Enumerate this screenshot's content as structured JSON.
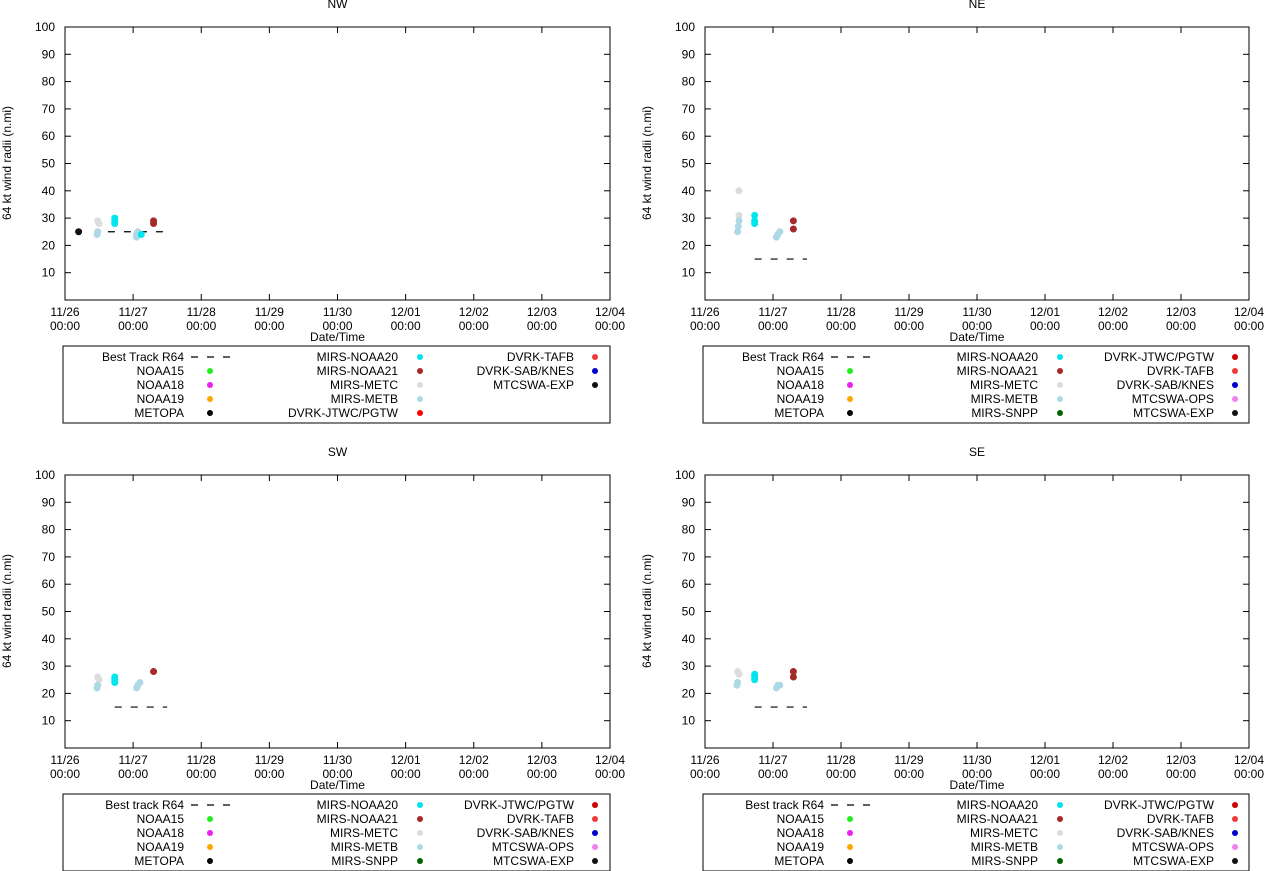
{
  "chart_data": [
    {
      "type": "scatter",
      "title": "NW",
      "xlabel": "Date/Time",
      "ylabel": "64 kt wind radii (n.mi)",
      "ylim": [
        0,
        100
      ],
      "yticks": [
        "10",
        "20",
        "30",
        "40",
        "50",
        "60",
        "70",
        "80",
        "90",
        "100"
      ],
      "xlim_days": [
        0,
        8
      ],
      "xticks": [
        [
          "11/26",
          "00:00"
        ],
        [
          "11/27",
          "00:00"
        ],
        [
          "11/28",
          "00:00"
        ],
        [
          "11/29",
          "00:00"
        ],
        [
          "11/30",
          "00:00"
        ],
        [
          "12/01",
          "00:00"
        ],
        [
          "12/02",
          "00:00"
        ],
        [
          "12/03",
          "00:00"
        ],
        [
          "12/04",
          "00:00"
        ]
      ],
      "legend": [
        {
          "label": "Best Track R64",
          "kind": "dash",
          "color": "#000000"
        },
        {
          "label": "NOAA15",
          "kind": "dot",
          "color": "#22ee22"
        },
        {
          "label": "NOAA18",
          "kind": "dot",
          "color": "#ee22ee"
        },
        {
          "label": "NOAA19",
          "kind": "dot",
          "color": "#ffa500"
        },
        {
          "label": "METOPA",
          "kind": "dot",
          "color": "#000000"
        },
        {
          "label": "MIRS-NOAA20",
          "kind": "dot",
          "color": "#00e5ee"
        },
        {
          "label": "MIRS-NOAA21",
          "kind": "dot",
          "color": "#a52a2a"
        },
        {
          "label": "MIRS-METC",
          "kind": "dot",
          "color": "#dcdcdc"
        },
        {
          "label": "MIRS-METB",
          "kind": "dot",
          "color": "#add8e6"
        },
        {
          "label": "DVRK-JTWC/PGTW",
          "kind": "dot",
          "color": "#ff0000"
        },
        {
          "label": "DVRK-TAFB",
          "kind": "dot",
          "color": "#ee3b3b"
        },
        {
          "label": "DVRK-SAB/KNES",
          "kind": "dot",
          "color": "#0000cd"
        },
        {
          "label": "MTCSWA-EXP",
          "kind": "dot",
          "color": "#111111"
        }
      ],
      "legend_columns": 3,
      "best_track": {
        "x": [
          0.63,
          1.5
        ],
        "y": 25
      },
      "series": [
        {
          "name": "METOPA",
          "color": "#111111",
          "points": [
            [
              0.2,
              25
            ]
          ]
        },
        {
          "name": "MIRS-METC",
          "color": "#dcdcdc",
          "points": [
            [
              0.48,
              29
            ],
            [
              0.5,
              28
            ]
          ]
        },
        {
          "name": "MIRS-METB",
          "color": "#add8e6",
          "points": [
            [
              0.47,
              24
            ],
            [
              0.48,
              25
            ],
            [
              1.05,
              23
            ],
            [
              1.05,
              24
            ],
            [
              1.07,
              25
            ],
            [
              1.1,
              24
            ]
          ]
        },
        {
          "name": "MIRS-NOAA20",
          "color": "#00e5ee",
          "points": [
            [
              0.73,
              28
            ],
            [
              0.73,
              29
            ],
            [
              0.73,
              30
            ],
            [
              1.12,
              24
            ]
          ]
        },
        {
          "name": "MIRS-NOAA21",
          "color": "#a52a2a",
          "points": [
            [
              1.3,
              28
            ],
            [
              1.3,
              29
            ]
          ]
        }
      ]
    },
    {
      "type": "scatter",
      "title": "NE",
      "xlabel": "Date/Time",
      "ylabel": "64 kt wind radii (n.mi)",
      "ylim": [
        0,
        100
      ],
      "yticks": [
        "10",
        "20",
        "30",
        "40",
        "50",
        "60",
        "70",
        "80",
        "90",
        "100"
      ],
      "xlim_days": [
        0,
        8
      ],
      "xticks": [
        [
          "11/26",
          "00:00"
        ],
        [
          "11/27",
          "00:00"
        ],
        [
          "11/28",
          "00:00"
        ],
        [
          "11/29",
          "00:00"
        ],
        [
          "11/30",
          "00:00"
        ],
        [
          "12/01",
          "00:00"
        ],
        [
          "12/02",
          "00:00"
        ],
        [
          "12/03",
          "00:00"
        ],
        [
          "12/04",
          "00:00"
        ]
      ],
      "legend": [
        {
          "label": "Best Track R64",
          "kind": "dash",
          "color": "#000000"
        },
        {
          "label": "NOAA15",
          "kind": "dot",
          "color": "#22ee22"
        },
        {
          "label": "NOAA18",
          "kind": "dot",
          "color": "#ee22ee"
        },
        {
          "label": "NOAA19",
          "kind": "dot",
          "color": "#ffa500"
        },
        {
          "label": "METOPA",
          "kind": "dot",
          "color": "#000000"
        },
        {
          "label": "MIRS-NOAA20",
          "kind": "dot",
          "color": "#00e5ee"
        },
        {
          "label": "MIRS-NOAA21",
          "kind": "dot",
          "color": "#a52a2a"
        },
        {
          "label": "MIRS-METC",
          "kind": "dot",
          "color": "#dcdcdc"
        },
        {
          "label": "MIRS-METB",
          "kind": "dot",
          "color": "#add8e6"
        },
        {
          "label": "MIRS-SNPP",
          "kind": "dot",
          "color": "#006400"
        },
        {
          "label": "DVRK-JTWC/PGTW",
          "kind": "dot",
          "color": "#cd0000"
        },
        {
          "label": "DVRK-TAFB",
          "kind": "dot",
          "color": "#ee3b3b"
        },
        {
          "label": "DVRK-SAB/KNES",
          "kind": "dot",
          "color": "#0000cd"
        },
        {
          "label": "MTCSWA-OPS",
          "kind": "dot",
          "color": "#ee82ee"
        },
        {
          "label": "MTCSWA-EXP",
          "kind": "dot",
          "color": "#111111"
        }
      ],
      "legend_columns": 3,
      "best_track": {
        "x": [
          0.73,
          1.5
        ],
        "y": 15
      },
      "series": [
        {
          "name": "MIRS-METC",
          "color": "#dcdcdc",
          "points": [
            [
              0.5,
              40
            ],
            [
              0.5,
              31
            ]
          ]
        },
        {
          "name": "MIRS-METB",
          "color": "#add8e6",
          "points": [
            [
              0.48,
              25
            ],
            [
              0.49,
              27
            ],
            [
              0.5,
              29
            ],
            [
              1.05,
              23
            ],
            [
              1.07,
              24
            ],
            [
              1.1,
              25
            ]
          ]
        },
        {
          "name": "MIRS-NOAA20",
          "color": "#00e5ee",
          "points": [
            [
              0.73,
              28
            ],
            [
              0.73,
              29
            ],
            [
              0.73,
              31
            ]
          ]
        },
        {
          "name": "MIRS-NOAA21",
          "color": "#a52a2a",
          "points": [
            [
              1.3,
              26
            ],
            [
              1.3,
              29
            ]
          ]
        }
      ]
    },
    {
      "type": "scatter",
      "title": "SW",
      "xlabel": "Date/Time",
      "ylabel": "64 kt wind radii (n.mi)",
      "ylim": [
        0,
        100
      ],
      "yticks": [
        "10",
        "20",
        "30",
        "40",
        "50",
        "60",
        "70",
        "80",
        "90",
        "100"
      ],
      "xlim_days": [
        0,
        8
      ],
      "xticks": [
        [
          "11/26",
          "00:00"
        ],
        [
          "11/27",
          "00:00"
        ],
        [
          "11/28",
          "00:00"
        ],
        [
          "11/29",
          "00:00"
        ],
        [
          "11/30",
          "00:00"
        ],
        [
          "12/01",
          "00:00"
        ],
        [
          "12/02",
          "00:00"
        ],
        [
          "12/03",
          "00:00"
        ],
        [
          "12/04",
          "00:00"
        ]
      ],
      "legend": [
        {
          "label": "Best track R64",
          "kind": "dash",
          "color": "#000000"
        },
        {
          "label": "NOAA15",
          "kind": "dot",
          "color": "#22ee22"
        },
        {
          "label": "NOAA18",
          "kind": "dot",
          "color": "#ee22ee"
        },
        {
          "label": "NOAA19",
          "kind": "dot",
          "color": "#ffa500"
        },
        {
          "label": "METOPA",
          "kind": "dot",
          "color": "#000000"
        },
        {
          "label": "MIRS-NOAA20",
          "kind": "dot",
          "color": "#00e5ee"
        },
        {
          "label": "MIRS-NOAA21",
          "kind": "dot",
          "color": "#a52a2a"
        },
        {
          "label": "MIRS-METC",
          "kind": "dot",
          "color": "#dcdcdc"
        },
        {
          "label": "MIRS-METB",
          "kind": "dot",
          "color": "#add8e6"
        },
        {
          "label": "MIRS-SNPP",
          "kind": "dot",
          "color": "#006400"
        },
        {
          "label": "DVRK-JTWC/PGTW",
          "kind": "dot",
          "color": "#cd0000"
        },
        {
          "label": "DVRK-TAFB",
          "kind": "dot",
          "color": "#ee3b3b"
        },
        {
          "label": "DVRK-SAB/KNES",
          "kind": "dot",
          "color": "#0000cd"
        },
        {
          "label": "MTCSWA-OPS",
          "kind": "dot",
          "color": "#ee82ee"
        },
        {
          "label": "MTCSWA-EXP",
          "kind": "dot",
          "color": "#111111"
        }
      ],
      "legend_columns": 3,
      "best_track": {
        "x": [
          0.73,
          1.5
        ],
        "y": 15
      },
      "series": [
        {
          "name": "MIRS-METC",
          "color": "#dcdcdc",
          "points": [
            [
              0.48,
              26
            ],
            [
              0.5,
              25
            ]
          ]
        },
        {
          "name": "MIRS-METB",
          "color": "#add8e6",
          "points": [
            [
              0.47,
              22
            ],
            [
              0.48,
              23
            ],
            [
              1.05,
              22
            ],
            [
              1.07,
              23
            ],
            [
              1.1,
              24
            ]
          ]
        },
        {
          "name": "MIRS-NOAA20",
          "color": "#00e5ee",
          "points": [
            [
              0.73,
              24
            ],
            [
              0.73,
              25
            ],
            [
              0.73,
              26
            ]
          ]
        },
        {
          "name": "MIRS-NOAA21",
          "color": "#a52a2a",
          "points": [
            [
              1.3,
              28
            ]
          ]
        }
      ]
    },
    {
      "type": "scatter",
      "title": "SE",
      "xlabel": "Date/Time",
      "ylabel": "64 kt wind radii (n.mi)",
      "ylim": [
        0,
        100
      ],
      "yticks": [
        "10",
        "20",
        "30",
        "40",
        "50",
        "60",
        "70",
        "80",
        "90",
        "100"
      ],
      "xlim_days": [
        0,
        8
      ],
      "xticks": [
        [
          "11/26",
          "00:00"
        ],
        [
          "11/27",
          "00:00"
        ],
        [
          "11/28",
          "00:00"
        ],
        [
          "11/29",
          "00:00"
        ],
        [
          "11/30",
          "00:00"
        ],
        [
          "12/01",
          "00:00"
        ],
        [
          "12/02",
          "00:00"
        ],
        [
          "12/03",
          "00:00"
        ],
        [
          "12/04",
          "00:00"
        ]
      ],
      "legend": [
        {
          "label": "Best track R64",
          "kind": "dash",
          "color": "#000000"
        },
        {
          "label": "NOAA15",
          "kind": "dot",
          "color": "#22ee22"
        },
        {
          "label": "NOAA18",
          "kind": "dot",
          "color": "#ee22ee"
        },
        {
          "label": "NOAA19",
          "kind": "dot",
          "color": "#ffa500"
        },
        {
          "label": "METOPA",
          "kind": "dot",
          "color": "#000000"
        },
        {
          "label": "MIRS-NOAA20",
          "kind": "dot",
          "color": "#00e5ee"
        },
        {
          "label": "MIRS-NOAA21",
          "kind": "dot",
          "color": "#a52a2a"
        },
        {
          "label": "MIRS-METC",
          "kind": "dot",
          "color": "#dcdcdc"
        },
        {
          "label": "MIRS-METB",
          "kind": "dot",
          "color": "#add8e6"
        },
        {
          "label": "MIRS-SNPP",
          "kind": "dot",
          "color": "#006400"
        },
        {
          "label": "DVRK-JTWC/PGTW",
          "kind": "dot",
          "color": "#cd0000"
        },
        {
          "label": "DVRK-TAFB",
          "kind": "dot",
          "color": "#ee3b3b"
        },
        {
          "label": "DVRK-SAB/KNES",
          "kind": "dot",
          "color": "#0000cd"
        },
        {
          "label": "MTCSWA-OPS",
          "kind": "dot",
          "color": "#ee82ee"
        },
        {
          "label": "MTCSWA-EXP",
          "kind": "dot",
          "color": "#111111"
        }
      ],
      "legend_columns": 3,
      "best_track": {
        "x": [
          0.73,
          1.5
        ],
        "y": 15
      },
      "series": [
        {
          "name": "MIRS-METC",
          "color": "#dcdcdc",
          "points": [
            [
              0.48,
              28
            ],
            [
              0.5,
              27
            ]
          ]
        },
        {
          "name": "MIRS-METB",
          "color": "#add8e6",
          "points": [
            [
              0.47,
              23
            ],
            [
              0.48,
              24
            ],
            [
              1.05,
              22
            ],
            [
              1.07,
              23
            ],
            [
              1.1,
              23
            ]
          ]
        },
        {
          "name": "MIRS-NOAA20",
          "color": "#00e5ee",
          "points": [
            [
              0.73,
              25
            ],
            [
              0.73,
              26
            ],
            [
              0.73,
              27
            ]
          ]
        },
        {
          "name": "MIRS-NOAA21",
          "color": "#a52a2a",
          "points": [
            [
              1.3,
              26
            ],
            [
              1.3,
              28
            ]
          ]
        }
      ]
    }
  ]
}
